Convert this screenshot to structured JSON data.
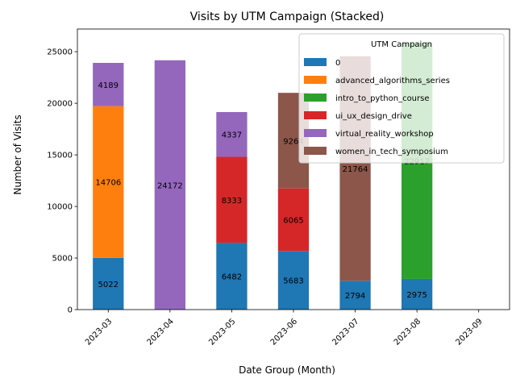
{
  "chart_data": {
    "type": "bar",
    "stacked": true,
    "title": "Visits by UTM Campaign (Stacked)",
    "xlabel": "Date Group (Month)",
    "ylabel": "Number of Visits",
    "categories": [
      "2023-03",
      "2023-04",
      "2023-05",
      "2023-06",
      "2023-07",
      "2023-08",
      "2023-09"
    ],
    "ylim": [
      0,
      27200
    ],
    "yticks": [
      0,
      5000,
      10000,
      15000,
      20000,
      25000
    ],
    "grid": false,
    "legend": {
      "title": "UTM Campaign",
      "placement": "top-right"
    },
    "series": [
      {
        "name": "0",
        "color": "#1f77b4",
        "values": [
          5022,
          0,
          6482,
          5683,
          2794,
          2975,
          0
        ]
      },
      {
        "name": "advanced_algorithms_series",
        "color": "#ff7f0e",
        "values": [
          14706,
          0,
          0,
          0,
          0,
          0,
          0
        ]
      },
      {
        "name": "intro_to_python_course",
        "color": "#2ca02c",
        "values": [
          0,
          0,
          0,
          0,
          0,
          22917,
          0
        ]
      },
      {
        "name": "ui_ux_design_drive",
        "color": "#d62728",
        "values": [
          0,
          0,
          8333,
          6065,
          0,
          0,
          0
        ]
      },
      {
        "name": "virtual_reality_workshop",
        "color": "#9467bd",
        "values": [
          4189,
          24172,
          4337,
          0,
          0,
          0,
          0
        ]
      },
      {
        "name": "women_in_tech_symposium",
        "color": "#8c564b",
        "values": [
          0,
          0,
          0,
          9264,
          21764,
          0,
          0
        ]
      }
    ]
  }
}
